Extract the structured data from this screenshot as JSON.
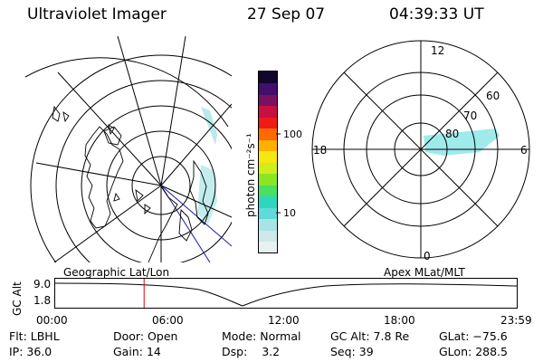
{
  "header": {
    "instrument": "Ultraviolet Imager",
    "date": "27 Sep 07",
    "time": "04:39:33 UT"
  },
  "colorbar": {
    "unit_label": "photon cm⁻²s⁻¹",
    "ticks": [
      "100",
      "10"
    ],
    "scale": "log",
    "colors": [
      "#e8f0f0",
      "#cfe8ea",
      "#a8e4e6",
      "#5fdad8",
      "#2ed6c0",
      "#4ade62",
      "#8ae622",
      "#cfee1a",
      "#f4e810",
      "#ffb000",
      "#ff6a00",
      "#ee1c18",
      "#c81040",
      "#7a1060",
      "#40106a",
      "#12062e"
    ]
  },
  "geo_map": {
    "label": "Geographic Lat/Lon"
  },
  "polar_plot": {
    "label": "Apex MLat/MLT",
    "mlt_labels": {
      "top": "12",
      "left": "18",
      "right": "6",
      "bottom": "0"
    },
    "lat_labels": [
      "60",
      "70",
      "80"
    ]
  },
  "altitude_strip": {
    "ylabel": "GC Alt",
    "ymax": "9.0",
    "ymin": "1.8",
    "xticks": [
      "00:00",
      "06:00",
      "12:00",
      "18:00",
      "23:59"
    ],
    "current_time_marker_hour": 4.66,
    "marker_color": "#e00000"
  },
  "status": {
    "flt_label": "Flt:",
    "flt_value": "LBHL",
    "ip_label": "IP:",
    "ip_value": "36.0",
    "door_label": "Door:",
    "door_value": "Open",
    "gain_label": "Gain:",
    "gain_value": "14",
    "mode_label": "Mode:",
    "mode_value": "Normal",
    "dsp_label": "Dsp:",
    "dsp_value": "3.2",
    "gcalt_label": "GC Alt:",
    "gcalt_value": "7.8 Re",
    "seq_label": "Seq:",
    "seq_value": "39",
    "glat_label": "GLat:",
    "glat_value": "−75.6",
    "glon_label": "GLon:",
    "glon_value": "288.5"
  }
}
